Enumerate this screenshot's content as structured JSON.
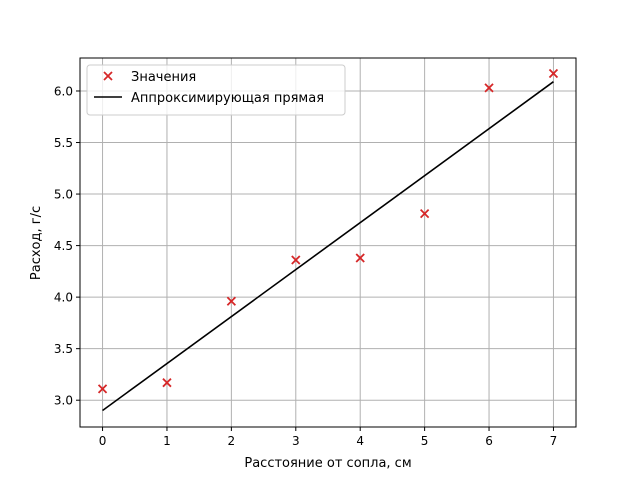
{
  "chart_data": {
    "type": "scatter",
    "title": "",
    "xlabel": "Расстояние от сопла, см",
    "ylabel": "Расход, г/с",
    "xlim": [
      -0.35,
      7.35
    ],
    "ylim": [
      2.74,
      6.32
    ],
    "xticks": [
      0,
      1,
      2,
      3,
      4,
      5,
      6,
      7
    ],
    "xtick_labels": [
      "0",
      "1",
      "2",
      "3",
      "4",
      "5",
      "6",
      "7"
    ],
    "yticks": [
      3.0,
      3.5,
      4.0,
      4.5,
      5.0,
      5.5,
      6.0
    ],
    "ytick_labels": [
      "3.0",
      "3.5",
      "4.0",
      "4.5",
      "5.0",
      "5.5",
      "6.0"
    ],
    "grid": true,
    "legend_position": "top-left",
    "series": [
      {
        "name": "Значения",
        "kind": "scatter",
        "marker": "x",
        "color": "#d62728",
        "x": [
          0,
          1,
          2,
          3,
          4,
          5,
          6,
          7
        ],
        "y": [
          3.11,
          3.17,
          3.96,
          4.36,
          4.38,
          4.81,
          6.03,
          6.17
        ]
      },
      {
        "name": "Аппроксимирующая прямая",
        "kind": "line",
        "color": "#000000",
        "x": [
          0,
          7
        ],
        "y": [
          2.9,
          6.09
        ]
      }
    ]
  }
}
